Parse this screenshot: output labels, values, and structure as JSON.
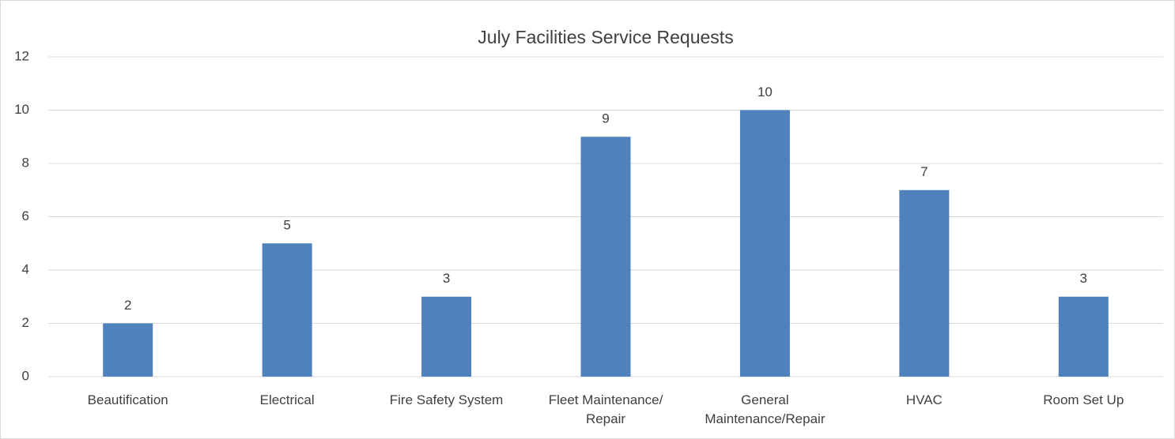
{
  "chart_data": {
    "type": "bar",
    "title": "July Facilities Service Requests",
    "categories": [
      "Beautification",
      "Electrical",
      "Fire Safety System",
      "Fleet Maintenance/ Repair",
      "General Maintenance/Repair",
      "HVAC",
      "Room Set Up"
    ],
    "values": [
      2,
      5,
      3,
      9,
      10,
      7,
      3
    ],
    "color": "#4f81bd",
    "ylim": [
      0,
      12
    ],
    "yticks": [
      0,
      2,
      4,
      6,
      8,
      10,
      12
    ],
    "grid": true
  }
}
